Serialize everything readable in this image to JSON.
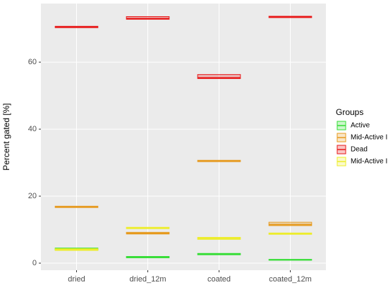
{
  "chart_data": {
    "type": "boxplot",
    "y_label": "Percent gated [%]",
    "legend_title": "Groups",
    "categories": [
      "dried",
      "dried_12m",
      "coated",
      "coated_12m"
    ],
    "ylim": [
      -2.1,
      77.5
    ],
    "yticks": [
      0,
      20,
      40,
      60
    ],
    "grid": true,
    "series": [
      {
        "name": "Active",
        "color": "#33dd33",
        "q1": [
          3.9,
          1.6,
          2.5,
          0.9
        ],
        "median": [
          4.2,
          1.8,
          2.7,
          1.0
        ],
        "q3": [
          4.5,
          2.0,
          2.9,
          1.1
        ]
      },
      {
        "name": "Mid-Active I",
        "color": "#e69a1e",
        "q1": [
          16.6,
          8.7,
          30.3,
          11.2
        ],
        "median": [
          16.8,
          8.9,
          30.5,
          11.5
        ],
        "q3": [
          17.0,
          9.2,
          30.7,
          12.2
        ]
      },
      {
        "name": "Dead",
        "color": "#e81818",
        "q1": [
          70.3,
          72.8,
          55.1,
          73.3
        ],
        "median": [
          70.5,
          73.0,
          55.3,
          73.5
        ],
        "q3": [
          70.7,
          73.6,
          56.3,
          73.7
        ]
      },
      {
        "name": "Mid-Active II",
        "color": "#eded2a",
        "q1": [
          3.8,
          10.3,
          7.1,
          8.6
        ],
        "median": [
          4.0,
          10.5,
          7.4,
          8.8
        ],
        "q3": [
          4.3,
          10.7,
          7.7,
          9.0
        ]
      }
    ]
  }
}
